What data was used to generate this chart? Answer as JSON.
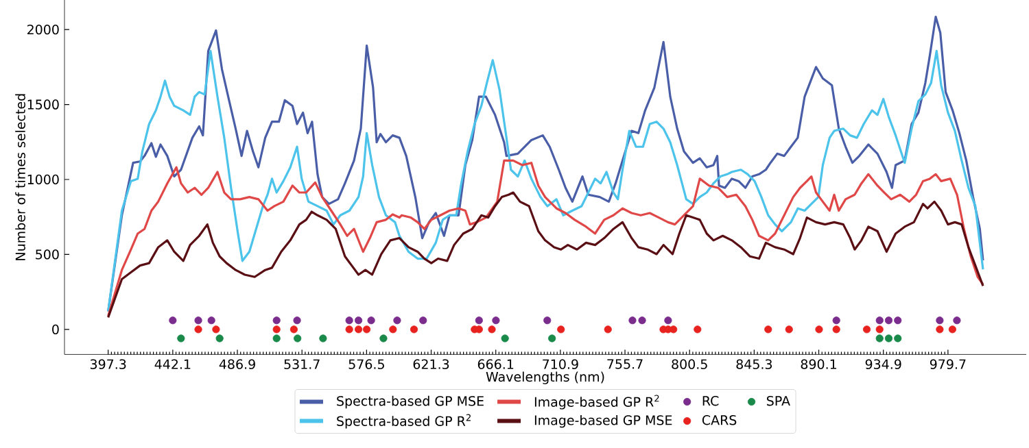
{
  "chart_data": {
    "type": "line",
    "xlabel": "Wavelengths (nm)",
    "ylabel": "Number of times selected",
    "xlim": [
      367,
      1034
    ],
    "ylim": [
      -167,
      2197
    ],
    "xticks": [
      397.3,
      442.1,
      486.9,
      531.7,
      576.5,
      621.3,
      666.1,
      710.9,
      755.7,
      800.5,
      845.3,
      890.1,
      934.9,
      979.7
    ],
    "yticks": [
      0,
      500,
      1000,
      1500,
      2000
    ],
    "grid": false,
    "legend": "bottom",
    "line_style": "solid",
    "series": [
      {
        "name": "Spectra-based GP MSE",
        "color": "#4a5ea8",
        "x": [
          397.3,
          406.8,
          414.6,
          419.4,
          422.5,
          427.3,
          430.4,
          433.6,
          438.3,
          443.1,
          447.8,
          455.7,
          460.4,
          463.0,
          466.7,
          472.1,
          476.2,
          480.9,
          485.7,
          489.8,
          493.6,
          497.7,
          501.5,
          506.2,
          510.9,
          515.7,
          519.8,
          525.1,
          528.3,
          532.4,
          535.6,
          538.7,
          542.5,
          545.7,
          550.4,
          556.7,
          561.5,
          567.8,
          572.5,
          576.6,
          581.0,
          583.5,
          586.1,
          589.9,
          594.6,
          599.3,
          604.0,
          610.3,
          615.1,
          619.8,
          624.5,
          630.2,
          634.0,
          640.3,
          645.0,
          649.8,
          654.5,
          659.3,
          665.6,
          671.9,
          673.5,
          681.4,
          686.1,
          690.8,
          698.7,
          703.5,
          709.8,
          714.5,
          719.2,
          726.2,
          730.3,
          738.2,
          744.5,
          749.2,
          754.0,
          760.3,
          765.0,
          769.7,
          776.1,
          782.4,
          787.1,
          791.9,
          796.6,
          802.9,
          807.6,
          812.4,
          817.1,
          819.7,
          820.9,
          825.0,
          829.8,
          834.5,
          839.2,
          844.0,
          848.7,
          853.4,
          856.6,
          861.3,
          866.1,
          870.8,
          875.5,
          880.3,
          888.2,
          892.9,
          899.2,
          904.0,
          908.7,
          913.4,
          918.2,
          924.5,
          930.8,
          937.1,
          940.9,
          943.4,
          949.7,
          954.5,
          959.2,
          964.0,
          967.1,
          971.2,
          974.4,
          978.1,
          982.9,
          987.6,
          992.4,
          997.1,
          1001.8,
          1004.0
        ],
        "values": [
          120,
          761,
          1111,
          1120,
          1157,
          1242,
          1151,
          1233,
          1157,
          1020,
          1065,
          1278,
          1354,
          1294,
          1857,
          1994,
          1735,
          1537,
          1339,
          1157,
          1324,
          1187,
          1081,
          1278,
          1385,
          1385,
          1528,
          1491,
          1370,
          1446,
          1309,
          1385,
          1035,
          883,
          837,
          868,
          974,
          1126,
          1339,
          1893,
          1613,
          1248,
          1303,
          1248,
          1294,
          1278,
          1157,
          883,
          609,
          715,
          776,
          624,
          761,
          761,
          1096,
          1263,
          1552,
          1552,
          1431,
          1248,
          1157,
          1172,
          1218,
          1263,
          1294,
          1218,
          1065,
          944,
          852,
          1020,
          898,
          883,
          852,
          974,
          1126,
          1324,
          1309,
          1461,
          1613,
          1917,
          1552,
          1339,
          1187,
          1111,
          1141,
          1081,
          1096,
          1157,
          959,
          944,
          1005,
          989,
          944,
          1020,
          1035,
          1065,
          1111,
          1172,
          1157,
          1218,
          1278,
          1552,
          1750,
          1674,
          1628,
          1339,
          1218,
          1111,
          1157,
          1233,
          1172,
          1050,
          944,
          1096,
          1126,
          1370,
          1446,
          1644,
          1826,
          2085,
          1978,
          1583,
          1461,
          1309,
          1126,
          883,
          670,
          460
        ]
      },
      {
        "name": "Spectra-based GP R$^{2}$",
        "color": "#4bc3ea",
        "x": [
          397.3,
          406.8,
          413.1,
          417.8,
          421.0,
          425.7,
          430.4,
          433.6,
          436.7,
          439.9,
          443.1,
          449.4,
          454.1,
          457.3,
          460.4,
          464.2,
          468.3,
          473.1,
          477.8,
          482.5,
          487.3,
          490.4,
          495.2,
          499.9,
          504.6,
          507.8,
          510.9,
          514.1,
          518.8,
          523.6,
          528.3,
          531.5,
          536.2,
          542.5,
          548.8,
          553.6,
          558.3,
          564.6,
          570.9,
          574.1,
          576.6,
          580.4,
          585.1,
          589.9,
          596.2,
          599.3,
          605.6,
          611.9,
          618.2,
          624.5,
          629.3,
          634.0,
          638.7,
          641.9,
          646.6,
          651.4,
          656.1,
          659.9,
          664.0,
          668.7,
          673.5,
          676.6,
          681.4,
          686.1,
          690.8,
          697.1,
          701.9,
          708.2,
          712.9,
          719.2,
          725.6,
          730.3,
          735.0,
          738.8,
          742.9,
          747.7,
          750.8,
          754.0,
          758.7,
          763.4,
          768.2,
          772.9,
          777.6,
          782.4,
          787.1,
          791.9,
          798.2,
          802.9,
          807.6,
          812.4,
          817.1,
          821.9,
          826.6,
          829.8,
          836.1,
          840.8,
          845.6,
          850.3,
          855.0,
          859.8,
          864.5,
          870.8,
          875.6,
          880.3,
          885.0,
          889.8,
          892.9,
          897.6,
          900.8,
          907.1,
          911.9,
          916.6,
          921.3,
          927.0,
          930.8,
          934.9,
          938.7,
          943.4,
          949.7,
          954.5,
          959.2,
          964.0,
          968.0,
          971.8,
          975.0,
          979.7,
          984.5,
          989.2,
          993.9,
          998.7,
          1004.0
        ],
        "values": [
          120,
          792,
          989,
          1005,
          1187,
          1370,
          1461,
          1552,
          1659,
          1552,
          1491,
          1461,
          1431,
          1552,
          1583,
          1567,
          1857,
          1552,
          1278,
          944,
          639,
          457,
          518,
          670,
          822,
          898,
          1005,
          913,
          989,
          1081,
          1218,
          1005,
          852,
          822,
          792,
          700,
          761,
          792,
          883,
          1020,
          1309,
          1096,
          883,
          761,
          715,
          624,
          518,
          472,
          472,
          578,
          731,
          761,
          761,
          959,
          1187,
          1370,
          1491,
          1644,
          1796,
          1598,
          1278,
          1065,
          1020,
          1126,
          1005,
          883,
          822,
          868,
          761,
          792,
          822,
          913,
          1005,
          974,
          1050,
          913,
          868,
          1065,
          1324,
          1218,
          1218,
          1370,
          1385,
          1339,
          1248,
          1096,
          868,
          837,
          883,
          913,
          974,
          1020,
          1035,
          1050,
          1065,
          1035,
          989,
          883,
          761,
          700,
          655,
          715,
          807,
          792,
          837,
          883,
          1096,
          1278,
          1324,
          1339,
          1294,
          1278,
          1370,
          1461,
          1431,
          1537,
          1415,
          1294,
          1111,
          1339,
          1522,
          1567,
          1644,
          1857,
          1628,
          1446,
          1324,
          1126,
          944,
          822,
          400
        ]
      },
      {
        "name": "Image-based GP R$^{2}$",
        "color": "#e04848",
        "x": [
          397.3,
          406.8,
          413.1,
          417.8,
          422.5,
          427.3,
          432.0,
          438.3,
          444.6,
          447.8,
          452.5,
          457.3,
          462.0,
          466.7,
          473.1,
          477.8,
          482.5,
          488.8,
          495.2,
          501.5,
          507.8,
          512.5,
          518.8,
          525.1,
          529.9,
          534.6,
          540.9,
          545.7,
          552.0,
          558.3,
          563.0,
          567.8,
          574.1,
          578.8,
          583.5,
          589.9,
          594.6,
          599.3,
          600.8,
          607.2,
          611.9,
          616.6,
          621.4,
          627.7,
          634.0,
          640.3,
          645.0,
          648.2,
          652.9,
          659.3,
          667.1,
          671.9,
          678.2,
          684.5,
          690.8,
          695.6,
          700.3,
          708.2,
          714.5,
          720.8,
          728.7,
          735.0,
          741.3,
          747.7,
          754.0,
          760.3,
          766.6,
          772.9,
          779.2,
          785.5,
          790.3,
          796.6,
          802.9,
          807.6,
          814.0,
          820.3,
          826.6,
          832.9,
          839.2,
          844.0,
          848.7,
          855.0,
          859.8,
          866.1,
          872.4,
          877.1,
          881.9,
          885.0,
          888.2,
          892.9,
          897.6,
          900.8,
          904.0,
          908.7,
          915.0,
          919.7,
          924.5,
          930.8,
          935.5,
          940.3,
          946.6,
          952.9,
          957.6,
          962.4,
          967.1,
          971.2,
          975.0,
          981.3,
          986.0,
          990.8,
          995.5,
          1000.3,
          1004.0
        ],
        "values": [
          90,
          396,
          533,
          639,
          670,
          792,
          852,
          974,
          1081,
          974,
          913,
          944,
          898,
          944,
          1050,
          913,
          868,
          868,
          883,
          868,
          792,
          822,
          852,
          959,
          913,
          913,
          980,
          883,
          792,
          700,
          624,
          670,
          518,
          609,
          715,
          731,
          767,
          746,
          761,
          746,
          715,
          670,
          731,
          761,
          792,
          807,
          792,
          700,
          715,
          746,
          852,
          1126,
          1126,
          1096,
          1111,
          959,
          883,
          807,
          776,
          731,
          685,
          639,
          731,
          761,
          807,
          776,
          761,
          776,
          746,
          715,
          700,
          761,
          822,
          1005,
          959,
          944,
          883,
          898,
          822,
          731,
          624,
          594,
          639,
          761,
          883,
          944,
          989,
          1020,
          913,
          852,
          792,
          898,
          792,
          868,
          898,
          974,
          1035,
          959,
          913,
          868,
          898,
          852,
          898,
          989,
          1005,
          1035,
          989,
          1005,
          898,
          670,
          487,
          350,
          300
        ]
      },
      {
        "name": "Image-based GP MSE",
        "color": "#5a0f14",
        "x": [
          397.3,
          406.8,
          413.1,
          419.4,
          425.7,
          432.0,
          438.3,
          443.1,
          449.4,
          454.1,
          460.4,
          466.1,
          469.9,
          474.6,
          479.4,
          485.7,
          492.0,
          498.9,
          506.2,
          510.9,
          517.3,
          523.6,
          529.9,
          534.6,
          538.4,
          542.5,
          548.8,
          555.1,
          561.5,
          566.2,
          570.9,
          575.7,
          580.4,
          586.7,
          593.0,
          599.3,
          605.6,
          611.9,
          616.6,
          621.4,
          626.1,
          632.4,
          637.2,
          643.5,
          649.8,
          656.1,
          660.8,
          665.6,
          670.3,
          675.0,
          678.2,
          682.9,
          689.2,
          695.6,
          700.3,
          706.6,
          711.3,
          716.1,
          722.4,
          728.7,
          735.0,
          741.3,
          747.7,
          754.0,
          760.3,
          765.0,
          771.3,
          777.6,
          782.4,
          788.7,
          793.4,
          798.2,
          802.9,
          807.6,
          812.4,
          817.1,
          823.5,
          829.8,
          836.1,
          842.4,
          848.7,
          853.4,
          859.8,
          866.1,
          872.4,
          877.1,
          881.9,
          888.2,
          894.5,
          900.8,
          907.1,
          911.9,
          915.0,
          919.7,
          924.5,
          930.8,
          937.1,
          943.4,
          949.7,
          956.1,
          962.4,
          965.5,
          970.3,
          975.0,
          979.7,
          984.5,
          989.2,
          993.9,
          998.7,
          1004.0
        ],
        "values": [
          80,
          335,
          381,
          426,
          442,
          548,
          594,
          518,
          457,
          563,
          624,
          700,
          578,
          487,
          442,
          396,
          365,
          350,
          396,
          411,
          518,
          594,
          700,
          731,
          785,
          761,
          731,
          670,
          487,
          426,
          365,
          396,
          365,
          502,
          594,
          609,
          548,
          518,
          472,
          442,
          472,
          457,
          563,
          639,
          670,
          761,
          746,
          822,
          883,
          898,
          913,
          852,
          822,
          655,
          594,
          548,
          533,
          563,
          533,
          578,
          563,
          609,
          670,
          715,
          609,
          548,
          533,
          502,
          563,
          502,
          639,
          761,
          746,
          731,
          639,
          594,
          624,
          594,
          548,
          487,
          472,
          578,
          548,
          533,
          502,
          609,
          746,
          715,
          700,
          715,
          700,
          609,
          533,
          594,
          685,
          655,
          518,
          639,
          685,
          715,
          837,
          807,
          852,
          792,
          700,
          715,
          700,
          548,
          426,
          290
        ]
      },
      {
        "type": "scatter",
        "name": "RC",
        "color": "#7b2d8e",
        "x": [
          442.1,
          459.8,
          468.9,
          514.1,
          528.3,
          564.5,
          570.9,
          579.7,
          597.7,
          615.7,
          654.5,
          666.2,
          701.8,
          760.9,
          767.6,
          785.6,
          902.3,
          932.3,
          938.6,
          944.9,
          974.0,
          985.9
        ],
        "values": [
          60,
          60,
          60,
          60,
          60,
          60,
          60,
          60,
          60,
          60,
          60,
          60,
          60,
          60,
          60,
          60,
          60,
          60,
          60,
          60,
          60,
          60
        ]
      },
      {
        "type": "scatter",
        "name": "CARS",
        "color": "#e8231f",
        "x": [
          459.8,
          472.1,
          514.1,
          526.1,
          564.5,
          570.9,
          576.6,
          594.8,
          609.4,
          651.4,
          654.5,
          663.4,
          711.3,
          743.9,
          782.3,
          785.6,
          789.3,
          806.0,
          855.0,
          869.5,
          890.3,
          902.3,
          923.4,
          932.3,
          974.0,
          982.8
        ],
        "values": [
          0,
          0,
          0,
          0,
          0,
          0,
          0,
          0,
          0,
          0,
          0,
          0,
          0,
          0,
          0,
          0,
          0,
          0,
          0,
          0,
          0,
          0,
          0,
          0,
          0,
          0
        ]
      },
      {
        "type": "scatter",
        "name": "SPA",
        "color": "#1a8a4a",
        "x": [
          447.8,
          474.6,
          514.1,
          528.6,
          546.3,
          588.2,
          672.5,
          705.1,
          932.3,
          938.6,
          944.9
        ],
        "values": [
          -60,
          -60,
          -60,
          -60,
          -60,
          -60,
          -60,
          -60,
          -60,
          -60,
          -60
        ]
      }
    ]
  }
}
